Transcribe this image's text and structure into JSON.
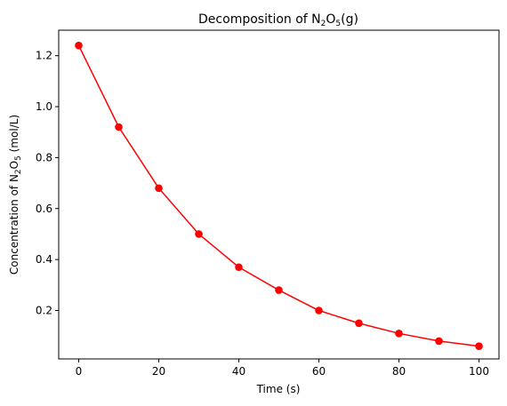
{
  "chart_data": {
    "type": "line",
    "title": {
      "pre": "Decomposition of N",
      "sub1": "2",
      "mid": "O",
      "sub2": "5",
      "post": "(g)"
    },
    "xlabel": "Time (s)",
    "ylabel": {
      "pre": "Concentration of N",
      "sub1": "2",
      "mid": "O",
      "sub2": "5",
      "post": " (mol/L)"
    },
    "xlim": [
      -5,
      105
    ],
    "ylim": [
      0.01,
      1.3
    ],
    "xticks": [
      0,
      20,
      40,
      60,
      80,
      100
    ],
    "xtick_labels": [
      "0",
      "20",
      "40",
      "60",
      "80",
      "100"
    ],
    "yticks": [
      0.2,
      0.4,
      0.6,
      0.8,
      1.0,
      1.2
    ],
    "ytick_labels": [
      "0.2",
      "0.4",
      "0.6",
      "0.8",
      "1.0",
      "1.2"
    ],
    "grid": false,
    "series": [
      {
        "color": "#ff0000",
        "marker": "circle",
        "x": [
          0,
          10,
          20,
          30,
          40,
          50,
          60,
          70,
          80,
          90,
          100
        ],
        "y": [
          1.24,
          0.92,
          0.68,
          0.5,
          0.37,
          0.28,
          0.2,
          0.15,
          0.11,
          0.08,
          0.06
        ]
      }
    ]
  }
}
